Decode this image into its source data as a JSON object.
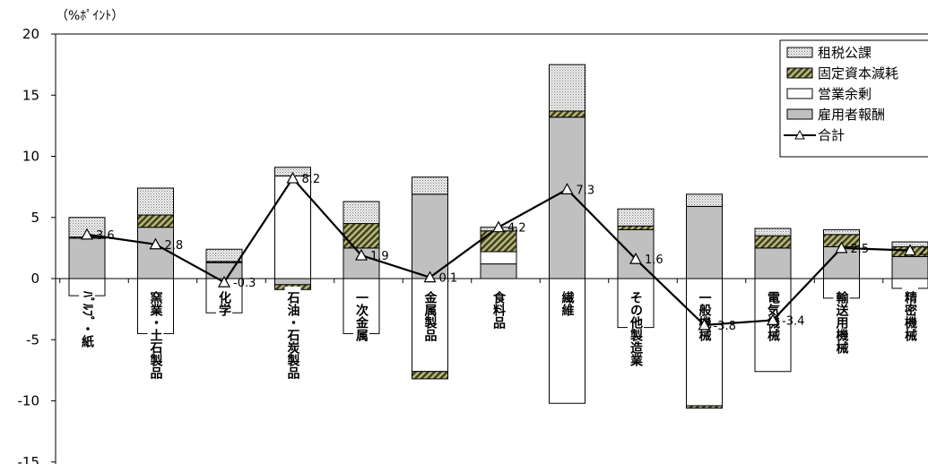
{
  "chart_data": {
    "type": "bar",
    "stacked": true,
    "unit_label": "（%ﾎﾟｲﾝﾄ）",
    "ylim": [
      -15,
      20
    ],
    "y_ticks": [
      "20",
      "15",
      "10",
      "5",
      "0",
      "-5",
      "-10",
      "-15"
    ],
    "categories": [
      "ﾊﾟﾙﾌﾟ・紙",
      "窯業・土石製品",
      "化学",
      "石油・石炭製品",
      "一次金属",
      "金属製品",
      "食料品",
      "繊維",
      "その他製造業",
      "一般機械",
      "電気機械",
      "輸送用機械",
      "精密機械"
    ],
    "series": [
      {
        "name": "租税公課",
        "color": "#d9d9d9",
        "pattern": "dots",
        "values": [
          1.6,
          2.2,
          1.0,
          0.7,
          1.8,
          1.4,
          0.3,
          3.8,
          1.4,
          1.0,
          0.6,
          0.4,
          0.4
        ]
      },
      {
        "name": "固定資本減耗",
        "color": "#6b6b3a",
        "pattern": "hatch",
        "values": [
          0.1,
          1.0,
          0.1,
          -0.4,
          2.0,
          -0.6,
          1.7,
          0.5,
          0.3,
          -0.2,
          1.0,
          1.0,
          0.8
        ]
      },
      {
        "name": "営業余剰",
        "color": "#ffffff",
        "pattern": "none",
        "values": [
          -1.4,
          -4.5,
          -2.8,
          8.4,
          -4.5,
          -7.6,
          1.0,
          -10.2,
          -4.0,
          -10.4,
          -7.6,
          -1.6,
          -0.8
        ]
      },
      {
        "name": "雇用者報酬",
        "color": "#c0c0c0",
        "pattern": "none",
        "values": [
          3.3,
          4.2,
          1.3,
          -0.5,
          2.5,
          6.9,
          1.2,
          13.2,
          4.0,
          5.9,
          2.5,
          2.6,
          1.8
        ]
      }
    ],
    "total": {
      "name": "合計",
      "values": [
        3.6,
        2.8,
        -0.3,
        8.2,
        1.9,
        0.1,
        4.2,
        7.3,
        1.6,
        -3.8,
        -3.4,
        2.5,
        2.3
      ],
      "labels": [
        "3.6",
        "2.8",
        "-0.3",
        "8.2",
        "1.9",
        "0.1",
        "4.2",
        "7.3",
        "1.6",
        "-3.8",
        "-3.4",
        "2.5",
        "2.3"
      ]
    },
    "legend_position": "top-right",
    "grid": false
  }
}
